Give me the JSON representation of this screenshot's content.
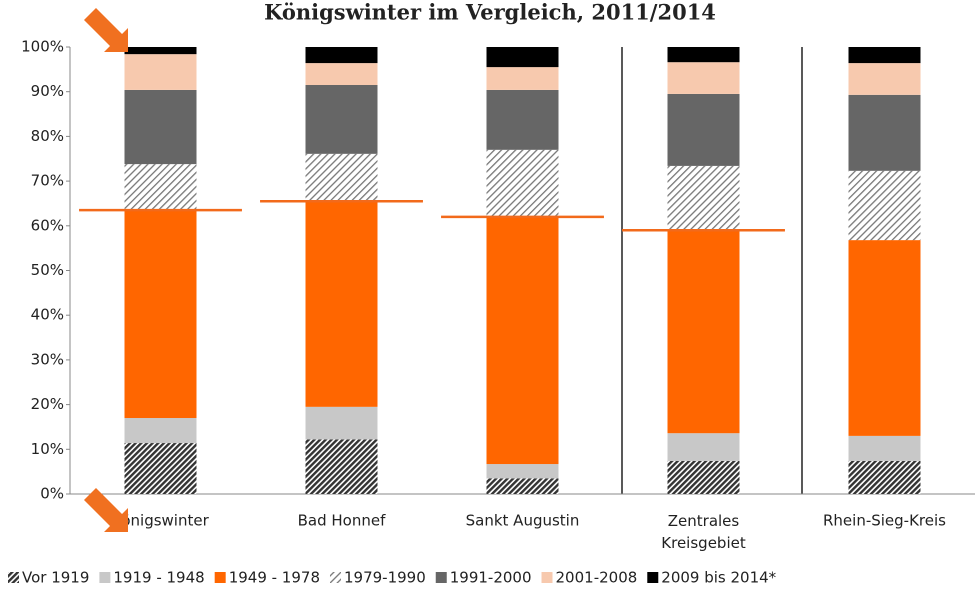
{
  "chart_data": {
    "type": "stacked-bar-100",
    "title": "Königswinter im Vergleich, 2011/2014",
    "categories": [
      "Königswinter",
      "Bad Honnef",
      "Sankt Augustin",
      "Zentrales Kreisgebiet",
      "Rhein-Sieg-Kreis"
    ],
    "series": [
      {
        "name": "Vor 1919",
        "color": "#333333",
        "pattern": "dense-hatch",
        "values": [
          11.4,
          12.2,
          3.5,
          7.4,
          7.4
        ]
      },
      {
        "name": "1919 - 1948",
        "color": "#c8c8c8",
        "values": [
          5.6,
          7.3,
          3.2,
          6.2,
          5.6
        ]
      },
      {
        "name": "1949 - 1978",
        "color": "#ff6600",
        "values": [
          46.5,
          46.0,
          55.3,
          45.2,
          43.8
        ]
      },
      {
        "name": "1979-1990",
        "color": "#777777",
        "pattern": "light-hatch",
        "values": [
          10.3,
          10.6,
          15.0,
          14.6,
          15.5
        ]
      },
      {
        "name": "1991-2000",
        "color": "#666666",
        "values": [
          16.6,
          15.4,
          13.4,
          16.1,
          17.0
        ]
      },
      {
        "name": "2001-2008",
        "color": "#f7c9ae",
        "values": [
          8.0,
          4.9,
          5.1,
          7.1,
          7.1
        ]
      },
      {
        "name": "2009 bis 2014*",
        "color": "#000000",
        "values": [
          1.6,
          3.6,
          4.5,
          3.4,
          3.6
        ]
      }
    ],
    "marker_values": [
      63.5,
      65.5,
      62.0,
      59.0,
      null
    ],
    "marker_color": "#f26a1b",
    "ylim": [
      0,
      100
    ],
    "yticks": [
      {
        "value": 0,
        "label": "0%"
      },
      {
        "value": 10,
        "label": "10%"
      },
      {
        "value": 20,
        "label": "20%"
      },
      {
        "value": 30,
        "label": "30%"
      },
      {
        "value": 40,
        "label": "40%"
      },
      {
        "value": 50,
        "label": "50%"
      },
      {
        "value": 60,
        "label": "60%"
      },
      {
        "value": 70,
        "label": "70%"
      },
      {
        "value": 80,
        "label": "80%"
      },
      {
        "value": 90,
        "label": "90%"
      },
      {
        "value": 100,
        "label": "100%"
      }
    ]
  }
}
